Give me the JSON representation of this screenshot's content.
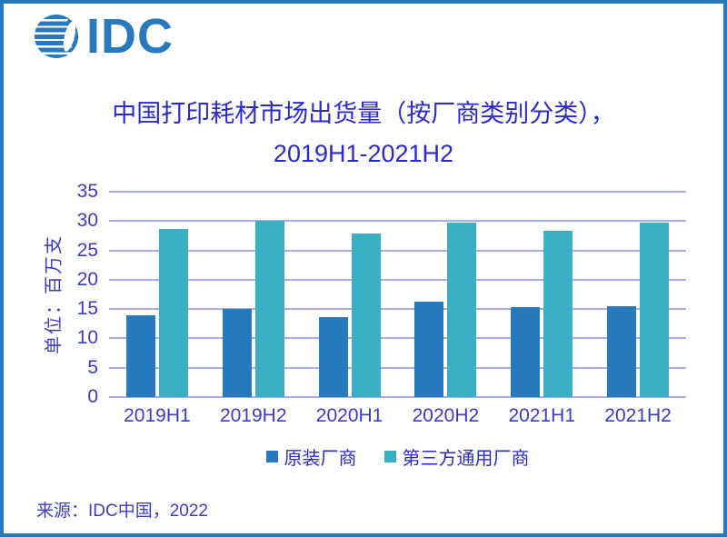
{
  "brand": {
    "logo_text": "IDC",
    "logo_color": "#2878BE"
  },
  "title": {
    "line1": "中国打印耗材市场出货量（按厂商类别分类），",
    "line2": "2019H1-2021H2",
    "color": "#2B2BC8"
  },
  "chart_data": {
    "type": "bar",
    "title": "中国打印耗材市场出货量（按厂商类别分类），2019H1-2021H2",
    "categories": [
      "2019H1",
      "2019H2",
      "2020H1",
      "2020H2",
      "2021H1",
      "2021H2"
    ],
    "series": [
      {
        "name": "原装厂商",
        "color": "#2779BE",
        "values": [
          14.0,
          15.0,
          13.7,
          16.3,
          15.3,
          15.5
        ]
      },
      {
        "name": "第三方通用厂商",
        "color": "#3AAFC4",
        "values": [
          28.6,
          30.1,
          27.9,
          29.7,
          28.4,
          29.8
        ]
      }
    ],
    "ylabel": "单位：百万支",
    "xlabel": "",
    "ylim": [
      0,
      35
    ],
    "ytick_step": 5,
    "grid": true,
    "gridline_color": "#ABABEC",
    "axis_text_color": "#3C3CC4",
    "legend_position": "bottom"
  },
  "source": {
    "text": "来源：IDC中国，2022"
  },
  "frame": {
    "border_color": "#2878BC",
    "background": "#FFFFFF"
  }
}
